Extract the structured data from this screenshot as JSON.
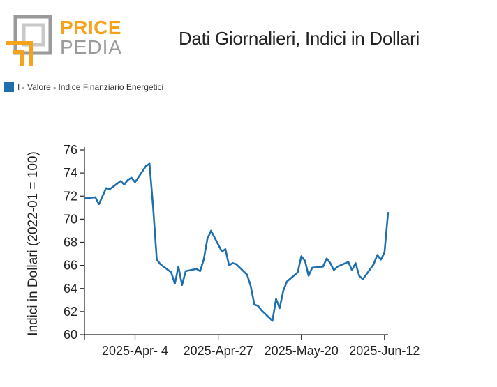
{
  "logo": {
    "line1": "PRICE",
    "line2": "PEDIA"
  },
  "colors": {
    "series": "#1f6fad",
    "logo_orange": "#f7a21b",
    "logo_gray": "#9a9a9a"
  },
  "chart_data": {
    "type": "line",
    "title": "Dati Giornalieri, Indici in Dollari",
    "ylabel": "Indici in Dollari (2022-01 = 100)",
    "xlabel": "",
    "ylim": [
      60,
      76
    ],
    "yticks": [
      "60",
      "62",
      "64",
      "66",
      "68",
      "70",
      "72",
      "74",
      "76"
    ],
    "xlim": [
      "2025-03-21",
      "2025-06-13"
    ],
    "xticks": [
      {
        "date": "2025-04-04",
        "label": "2025-Apr- 4"
      },
      {
        "date": "2025-04-27",
        "label": "2025-Apr-27"
      },
      {
        "date": "2025-05-20",
        "label": "2025-May-20"
      },
      {
        "date": "2025-06-12",
        "label": "2025-Jun-12"
      }
    ],
    "legend_position": "top-left",
    "grid": false,
    "series": [
      {
        "name": "I - Valore - Indice Finanziario Energetici",
        "x": [
          "2025-03-21",
          "2025-03-24",
          "2025-03-25",
          "2025-03-26",
          "2025-03-27",
          "2025-03-28",
          "2025-03-31",
          "2025-04-01",
          "2025-04-02",
          "2025-04-03",
          "2025-04-04",
          "2025-04-07",
          "2025-04-08",
          "2025-04-09",
          "2025-04-10",
          "2025-04-11",
          "2025-04-14",
          "2025-04-15",
          "2025-04-16",
          "2025-04-17",
          "2025-04-18",
          "2025-04-21",
          "2025-04-22",
          "2025-04-23",
          "2025-04-24",
          "2025-04-25",
          "2025-04-28",
          "2025-04-29",
          "2025-04-30",
          "2025-05-01",
          "2025-05-02",
          "2025-05-05",
          "2025-05-06",
          "2025-05-07",
          "2025-05-08",
          "2025-05-09",
          "2025-05-12",
          "2025-05-13",
          "2025-05-14",
          "2025-05-15",
          "2025-05-16",
          "2025-05-19",
          "2025-05-20",
          "2025-05-21",
          "2025-05-22",
          "2025-05-23",
          "2025-05-26",
          "2025-05-27",
          "2025-05-28",
          "2025-05-29",
          "2025-05-30",
          "2025-06-02",
          "2025-06-03",
          "2025-06-04",
          "2025-06-05",
          "2025-06-06",
          "2025-06-09",
          "2025-06-10",
          "2025-06-11",
          "2025-06-12",
          "2025-06-13"
        ],
        "values": [
          71.8,
          71.9,
          71.3,
          72.0,
          72.7,
          72.6,
          73.3,
          73.0,
          73.4,
          73.6,
          73.2,
          74.6,
          74.8,
          71.0,
          66.5,
          66.1,
          65.4,
          64.4,
          65.9,
          64.3,
          65.5,
          65.7,
          65.5,
          66.5,
          68.3,
          69.0,
          67.2,
          67.4,
          66.0,
          66.2,
          66.1,
          65.2,
          64.2,
          62.6,
          62.5,
          62.1,
          61.2,
          63.1,
          62.3,
          63.8,
          64.6,
          65.4,
          66.8,
          66.4,
          65.1,
          65.8,
          65.9,
          66.6,
          66.2,
          65.6,
          65.9,
          66.3,
          65.6,
          66.2,
          65.1,
          64.8,
          66.1,
          66.9,
          66.5,
          67.1,
          70.6
        ]
      }
    ]
  }
}
